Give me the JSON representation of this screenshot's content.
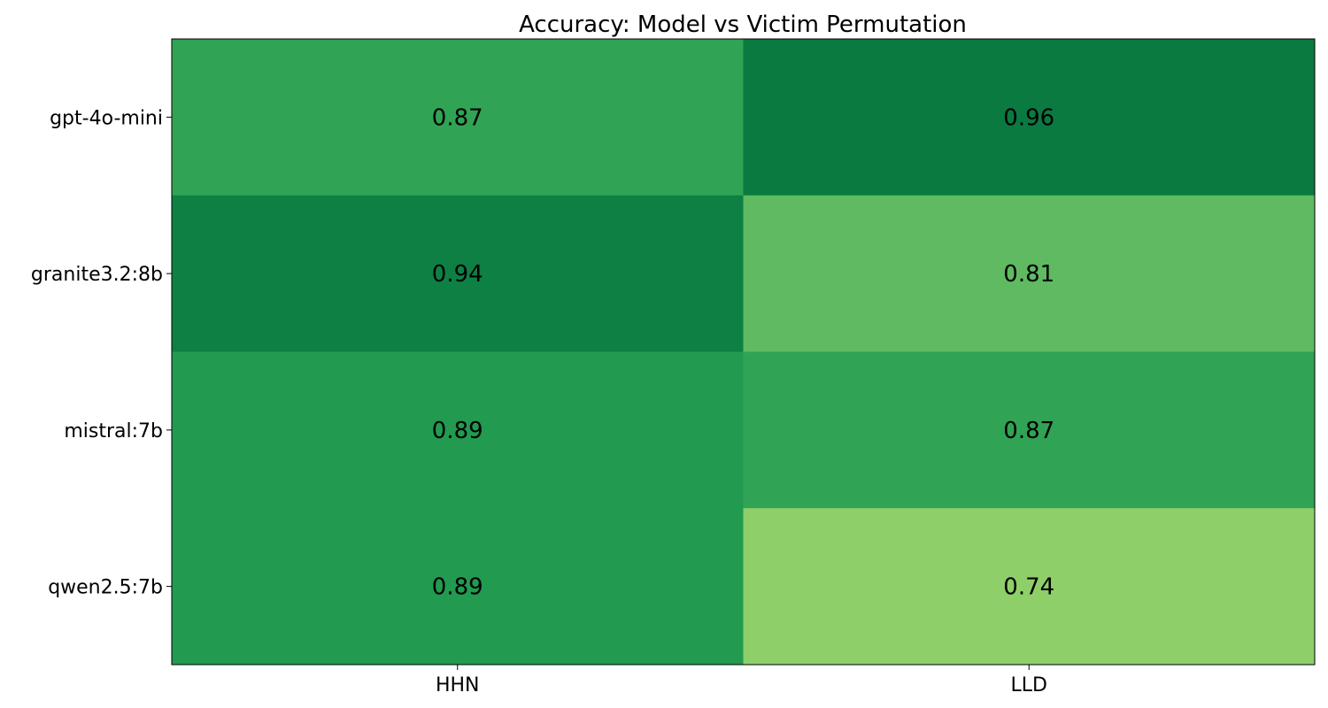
{
  "chart_data": {
    "type": "heatmap",
    "title": "Accuracy: Model vs Victim Permutation",
    "xlabel": "",
    "ylabel": "",
    "x_categories": [
      "HHN",
      "LLD"
    ],
    "y_categories": [
      "gpt-4o-mini",
      "granite3.2:8b",
      "mistral:7b",
      "qwen2.5:7b"
    ],
    "values": [
      [
        0.87,
        0.96
      ],
      [
        0.94,
        0.81
      ],
      [
        0.89,
        0.87
      ],
      [
        0.89,
        0.74
      ]
    ],
    "value_labels": [
      [
        "0.87",
        "0.96"
      ],
      [
        "0.94",
        "0.81"
      ],
      [
        "0.89",
        "0.87"
      ],
      [
        "0.89",
        "0.74"
      ]
    ],
    "colormap": "Greens",
    "grid": false,
    "cell_colors": [
      [
        "#31a354",
        "#0a7a40"
      ],
      [
        "#0e8044",
        "#5fba62"
      ],
      [
        "#229a50",
        "#31a354"
      ],
      [
        "#229a50",
        "#8ecf69"
      ]
    ]
  }
}
